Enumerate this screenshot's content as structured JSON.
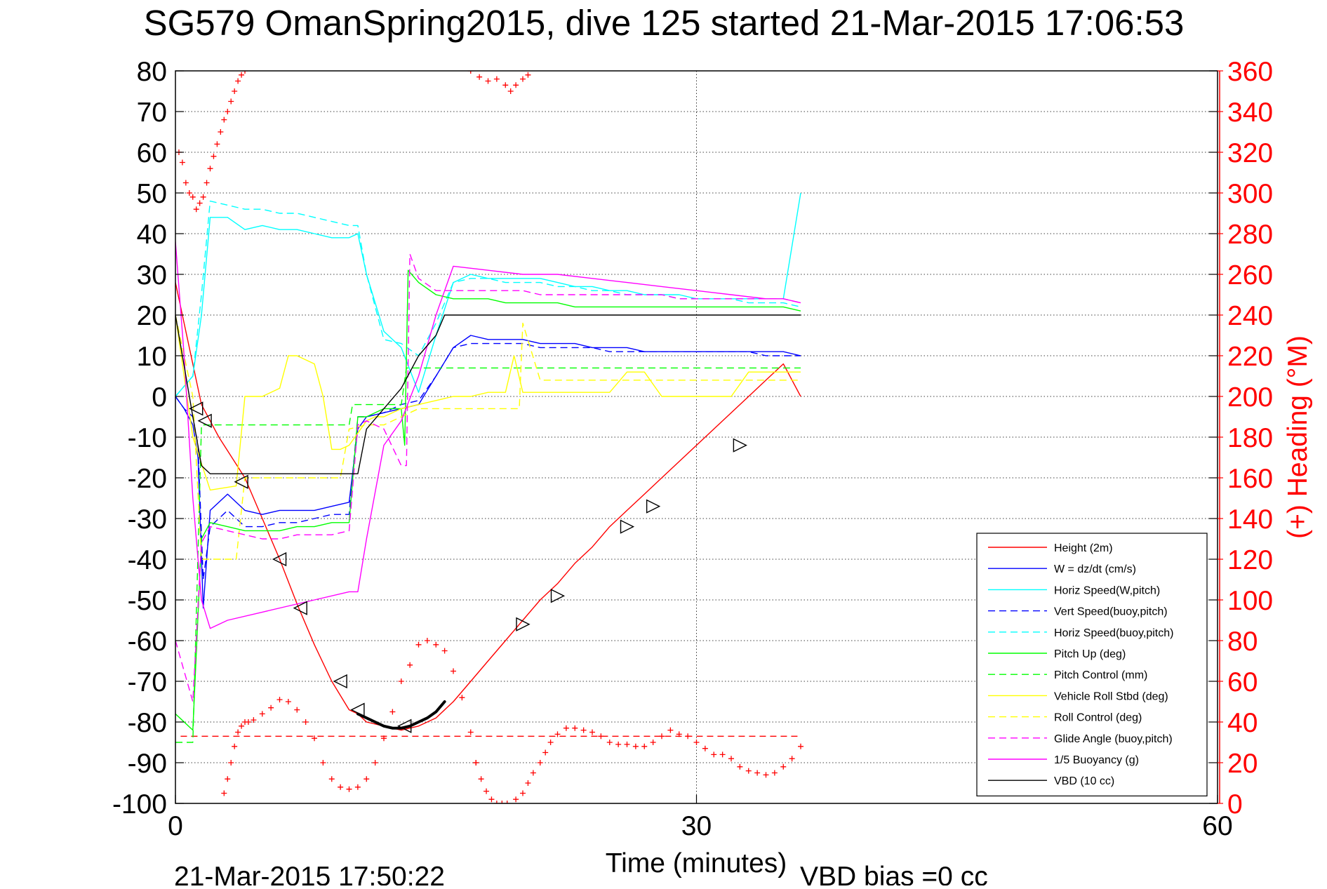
{
  "chart_data": {
    "type": "line",
    "title": "SG579 OmanSpring2015, dive 125 started 21-Mar-2015 17:06:53",
    "xlabel": "Time (minutes)",
    "ylabel": "",
    "y2label": "(+) Heading (°M)",
    "xlim": [
      0,
      60
    ],
    "ylim": [
      -100,
      80
    ],
    "y2lim": [
      0,
      360
    ],
    "x_ticks": [
      0,
      30,
      60
    ],
    "y_ticks": [
      80,
      70,
      60,
      50,
      40,
      30,
      20,
      10,
      0,
      -10,
      -20,
      -30,
      -40,
      -50,
      -60,
      -70,
      -80,
      -90,
      -100
    ],
    "y2_ticks": [
      360,
      340,
      320,
      300,
      280,
      260,
      240,
      220,
      200,
      180,
      160,
      140,
      120,
      100,
      80,
      60,
      40,
      20,
      0
    ],
    "grid": "dotted",
    "legend_position": "bottom-right",
    "footer_left": "21-Mar-2015 17:50:22",
    "footer_right": "VBD bias =0 cc",
    "colors": {
      "red": "#ff0000",
      "blue": "#0000ff",
      "cyan": "#00ffff",
      "green": "#00ff00",
      "yellow": "#ffff00",
      "magenta": "#ff00ff",
      "black": "#000000"
    },
    "series": [
      {
        "name": "Height (2m)",
        "color": "#ff0000",
        "dash": "solid",
        "x": [
          0,
          1.5,
          2.5,
          4,
          5,
          6,
          7,
          8,
          9,
          10,
          10.5,
          11,
          12,
          13,
          14,
          15,
          16,
          17,
          18,
          19,
          20,
          21,
          22,
          23,
          24,
          25,
          26,
          27,
          28,
          29,
          30,
          31,
          32,
          33,
          34,
          35,
          36
        ],
        "y": [
          28,
          -2,
          -10,
          -20,
          -30,
          -40,
          -51,
          -61,
          -70,
          -77,
          -78,
          -80,
          -81,
          -82,
          -81,
          -79,
          -75,
          -70,
          -65,
          -60,
          -55,
          -50,
          -46,
          -41,
          -37,
          -32,
          -28,
          -24,
          -20,
          -16,
          -12,
          -8,
          -4,
          0,
          4,
          8,
          0
        ]
      },
      {
        "name": "W = dz/dt (cm/s)",
        "color": "#0000ff",
        "dash": "solid",
        "x": [
          0,
          0.5,
          1,
          1.3,
          1.6,
          2,
          3,
          4,
          5,
          6,
          7,
          8,
          9,
          10,
          10.5,
          11,
          12,
          13,
          14,
          15,
          16,
          17,
          18,
          19,
          20,
          21,
          22,
          23,
          24,
          25,
          26,
          27,
          28,
          29,
          30,
          31,
          32,
          33,
          34,
          35,
          36
        ],
        "y": [
          0,
          -3,
          -7,
          -15,
          -52,
          -28,
          -24,
          -28,
          -29,
          -28,
          -28,
          -28,
          -27,
          -26,
          -8,
          -5,
          -4,
          -3,
          -2,
          5,
          12,
          15,
          14,
          14,
          14,
          13,
          13,
          13,
          12,
          12,
          12,
          11,
          11,
          11,
          11,
          11,
          11,
          11,
          11,
          11,
          10
        ]
      },
      {
        "name": "Horiz Speed(W,pitch)",
        "color": "#00ffff",
        "dash": "solid",
        "x": [
          0,
          1,
          1.5,
          2,
          3,
          4,
          5,
          6,
          7,
          8,
          9,
          10,
          10.5,
          11,
          12,
          13,
          14,
          15,
          16,
          17,
          18,
          19,
          20,
          21,
          22,
          23,
          24,
          25,
          26,
          27,
          28,
          29,
          30,
          31,
          32,
          33,
          34,
          35,
          36
        ],
        "y": [
          0,
          5,
          20,
          44,
          44,
          41,
          42,
          41,
          41,
          40,
          39,
          39,
          40,
          30,
          16,
          12,
          1,
          15,
          28,
          30,
          29,
          29,
          29,
          29,
          28,
          27,
          27,
          26,
          26,
          25,
          25,
          25,
          24,
          24,
          24,
          24,
          24,
          24,
          50
        ]
      },
      {
        "name": "Vert Speed(buoy,pitch)",
        "color": "#0000ff",
        "dash": "dashed",
        "x": [
          0,
          0.5,
          1,
          1.3,
          1.6,
          2,
          3,
          4,
          5,
          6,
          7,
          8,
          9,
          10,
          10.5,
          11,
          12,
          13,
          14,
          15,
          16,
          17,
          18,
          19,
          20,
          21,
          22,
          23,
          24,
          25,
          26,
          27,
          28,
          29,
          30,
          31,
          32,
          33,
          34,
          35,
          36
        ],
        "y": [
          0,
          -3,
          -5,
          -12,
          -45,
          -32,
          -28,
          -32,
          -32,
          -31,
          -31,
          -30,
          -29,
          -29,
          -5,
          -5,
          -4,
          -2,
          -1,
          5,
          12,
          13,
          13,
          13,
          13,
          12,
          12,
          12,
          12,
          11,
          11,
          11,
          11,
          11,
          11,
          11,
          11,
          11,
          10,
          10,
          10
        ]
      },
      {
        "name": "Horiz Speed(buoy,pitch)",
        "color": "#00ffff",
        "dash": "dashed",
        "x": [
          0,
          1,
          1.5,
          2,
          3,
          4,
          5,
          6,
          7,
          8,
          9,
          10,
          10.5,
          11,
          12,
          13,
          14,
          15,
          16,
          17,
          18,
          19,
          20,
          21,
          22,
          23,
          24,
          25,
          26,
          27,
          28,
          29,
          30,
          31,
          32,
          33,
          34,
          35,
          36
        ],
        "y": [
          0,
          5,
          25,
          48,
          47,
          46,
          46,
          45,
          45,
          44,
          43,
          42,
          42,
          30,
          14,
          13,
          10,
          18,
          28,
          29,
          29,
          28,
          28,
          28,
          27,
          27,
          26,
          26,
          25,
          25,
          25,
          24,
          24,
          24,
          24,
          23,
          23,
          23,
          22
        ]
      },
      {
        "name": "Pitch Up (deg)",
        "color": "#00ff00",
        "dash": "solid",
        "x": [
          0,
          1,
          1.5,
          2,
          3,
          4,
          5,
          6,
          7,
          8,
          9,
          10,
          10.5,
          11,
          12,
          13,
          13.2,
          13.4,
          14,
          15,
          16,
          17,
          18,
          19,
          20,
          21,
          22,
          23,
          24,
          25,
          26,
          27,
          28,
          29,
          30,
          31,
          32,
          33,
          34,
          35,
          36
        ],
        "y": [
          -78,
          -82,
          -35,
          -31,
          -32,
          -33,
          -33,
          -33,
          -32,
          -32,
          -31,
          -31,
          -5,
          -5,
          -3,
          -3,
          -12,
          31,
          28,
          25,
          24,
          24,
          24,
          23,
          23,
          23,
          23,
          22,
          22,
          22,
          22,
          22,
          22,
          22,
          22,
          22,
          22,
          22,
          22,
          22,
          21
        ]
      },
      {
        "name": "Pitch Control (mm)",
        "color": "#00ff00",
        "dash": "dashed",
        "x": [
          0,
          1,
          1.5,
          2,
          10,
          10.2,
          13,
          13.3,
          36
        ],
        "y": [
          -85,
          -85,
          -7,
          -7,
          -7,
          -2,
          -2,
          7,
          7
        ]
      },
      {
        "name": "Vehicle Roll Stbd (deg)",
        "color": "#ffff00",
        "dash": "solid",
        "x": [
          0,
          1,
          2,
          3.5,
          4,
          5,
          6,
          6.5,
          7,
          8,
          8.5,
          9,
          9.5,
          10,
          11,
          11.5,
          12,
          13,
          14,
          15,
          16,
          17,
          18,
          19,
          19.5,
          20,
          21,
          22,
          23,
          24,
          25,
          26,
          27,
          28,
          29,
          30,
          31,
          32,
          33,
          34,
          35,
          36
        ],
        "y": [
          20,
          -10,
          -23,
          -22,
          0,
          0,
          2,
          10,
          10,
          8,
          0,
          -13,
          -13,
          -12,
          -6,
          -5,
          -5,
          -3,
          -2,
          -1,
          0,
          0,
          1,
          1,
          10,
          1,
          1,
          1,
          1,
          1,
          1,
          6,
          6,
          0,
          0,
          0,
          0,
          0,
          6,
          6,
          6,
          6
        ]
      },
      {
        "name": "Roll Control (deg)",
        "color": "#ffff00",
        "dash": "dashed",
        "x": [
          0,
          1,
          1.5,
          2,
          3.5,
          4,
          8,
          9.5,
          10,
          11,
          12,
          14,
          18,
          19.8,
          20,
          21,
          36
        ],
        "y": [
          20,
          0,
          -40,
          -40,
          -40,
          -20,
          -20,
          -20,
          -8,
          -7,
          -7,
          -3,
          -3,
          -3,
          18,
          4,
          4
        ]
      },
      {
        "name": "Glide Angle (buoy,pitch)",
        "color": "#ff00ff",
        "dash": "dashed",
        "x": [
          0,
          1,
          1.5,
          2,
          3,
          4,
          5,
          6,
          7,
          8,
          9,
          10,
          10.5,
          11,
          12,
          13,
          13.3,
          13.5,
          14,
          15,
          16,
          17,
          18,
          19,
          20,
          21,
          22,
          23,
          24,
          25,
          26,
          27,
          28,
          29,
          30,
          31,
          32,
          33,
          34,
          35,
          36
        ],
        "y": [
          -60,
          -75,
          -36,
          -32,
          -33,
          -34,
          -35,
          -35,
          -34,
          -34,
          -34,
          -33,
          -7,
          -6,
          -8,
          -17,
          -17,
          35,
          29,
          26,
          26,
          26,
          26,
          26,
          26,
          25,
          25,
          25,
          25,
          25,
          25,
          25,
          25,
          24,
          24,
          24,
          24,
          24,
          24,
          24,
          23
        ]
      },
      {
        "name": "1/5 Buoyancy (g)",
        "color": "#ff00ff",
        "dash": "solid",
        "x": [
          0,
          0.5,
          1,
          1.5,
          2,
          3,
          5,
          8,
          10,
          10.5,
          11,
          12,
          13,
          14,
          15,
          16,
          18,
          20,
          22,
          24,
          26,
          28,
          30,
          32,
          34,
          35,
          36
        ],
        "y": [
          38,
          10,
          -25,
          -50,
          -57,
          -55,
          -53,
          -50,
          -48,
          -48,
          -35,
          -12,
          -6,
          5,
          20,
          32,
          31,
          30,
          30,
          29,
          28,
          27,
          26,
          25,
          24,
          24,
          23
        ]
      },
      {
        "name": "VBD (10 cc)",
        "color": "#000000",
        "dash": "solid",
        "x": [
          0,
          1,
          1.5,
          2,
          10.5,
          11,
          12,
          13,
          14,
          15,
          15.5,
          36
        ],
        "y": [
          20,
          -5,
          -17,
          -19,
          -19,
          -8,
          -3,
          2,
          10,
          15,
          20,
          20
        ]
      }
    ],
    "heading_series": {
      "name": "(+) Heading (°M)",
      "axis": "right",
      "marker": "+",
      "color": "#ff0000",
      "segments": [
        {
          "x": [
            0.2,
            0.4,
            0.6,
            0.8,
            1,
            1.2,
            1.4,
            1.6,
            1.8,
            2,
            2.2,
            2.4,
            2.6,
            2.8,
            3,
            3.2,
            3.4,
            3.6,
            3.8,
            4.0
          ],
          "y": [
            320,
            315,
            305,
            300,
            298,
            292,
            295,
            298,
            305,
            312,
            318,
            324,
            330,
            336,
            340,
            345,
            350,
            355,
            358,
            360
          ]
        },
        {
          "x": [
            17,
            17.5,
            18,
            18.5,
            19,
            19.3,
            19.6,
            20,
            20.3
          ],
          "y": [
            360,
            357,
            355,
            356,
            353,
            350,
            353,
            356,
            358
          ]
        },
        {
          "x": [
            2.8,
            3,
            3.2,
            3.4,
            3.6,
            3.8,
            4,
            4.2,
            4.5,
            5,
            5.5,
            6,
            6.5,
            7,
            7.5,
            8,
            8.5,
            9,
            9.5,
            10,
            10.5,
            11,
            11.5,
            12,
            12.5,
            13,
            13.5,
            14,
            14.5,
            15,
            15.5,
            16,
            16.5,
            17,
            17.3
          ],
          "y": [
            5,
            12,
            20,
            28,
            35,
            38,
            40,
            40,
            41,
            44,
            47,
            51,
            50,
            46,
            40,
            32,
            20,
            12,
            8,
            7,
            8,
            12,
            20,
            32,
            45,
            60,
            68,
            78,
            80,
            78,
            75,
            65,
            52,
            35,
            20
          ]
        },
        {
          "x": [
            17.3,
            17.6,
            17.9,
            18.2,
            18.5,
            18.8,
            19.1
          ],
          "y": [
            20,
            12,
            6,
            2,
            0,
            0,
            0
          ]
        },
        {
          "x": [
            19.6,
            20,
            20.3,
            20.6,
            21,
            21.3,
            21.6,
            22,
            22.5,
            23,
            23.5,
            24,
            24.5,
            25,
            25.5,
            26,
            26.5,
            27,
            27.5,
            28,
            28.5,
            29,
            29.5,
            30,
            30.5,
            31,
            31.5,
            32,
            32.5,
            33,
            33.5,
            34,
            34.5,
            35,
            35.5,
            36
          ],
          "y": [
            2,
            5,
            10,
            15,
            20,
            25,
            30,
            34,
            37,
            37,
            36,
            35,
            33,
            30,
            29,
            29,
            28,
            28,
            30,
            33,
            36,
            34,
            33,
            30,
            27,
            24,
            24,
            22,
            18,
            16,
            15,
            14,
            15,
            18,
            22,
            28
          ]
        }
      ],
      "reference_line": {
        "y": 33,
        "dash": "dashed"
      }
    },
    "triangle_markers": {
      "x": [
        1.2,
        1.7,
        3.8,
        6,
        7.2,
        9.5,
        10.5,
        13.2,
        20,
        22,
        26,
        27.5,
        32.5
      ],
      "y": [
        -3,
        -6,
        -21,
        -40,
        -52,
        -70,
        -77,
        -81,
        -56,
        -49,
        -32,
        -27,
        -12
      ],
      "directions": [
        "left",
        "left",
        "left",
        "left",
        "left",
        "left",
        "left",
        "left",
        "right",
        "right",
        "right",
        "right",
        "right"
      ]
    },
    "black_arc": {
      "x": [
        10.5,
        11,
        11.5,
        12,
        12.5,
        13,
        13.5,
        14,
        14.5,
        15,
        15.5
      ],
      "y": [
        -78,
        -79,
        -80,
        -81,
        -81.5,
        -81.5,
        -81,
        -80,
        -79,
        -77.5,
        -75
      ]
    }
  }
}
